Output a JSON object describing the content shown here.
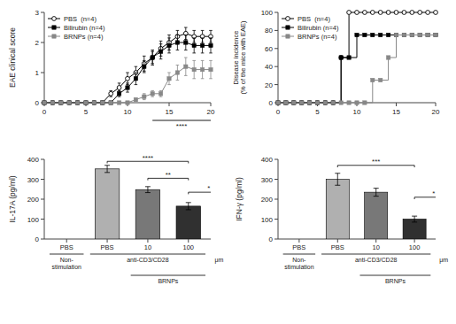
{
  "chart_data": [
    {
      "type": "line",
      "y_label": "EAE clinical score",
      "xlim": [
        0,
        20
      ],
      "ylim": [
        0,
        3
      ],
      "xticks": [
        0,
        5,
        10,
        15,
        20
      ],
      "yticks": [
        0,
        1,
        2,
        3
      ],
      "legend": "upper-left",
      "series": [
        {
          "name": "PBS  (n=4)",
          "color": "#000000",
          "marker": "open-circle",
          "x": [
            0,
            1,
            2,
            3,
            4,
            5,
            6,
            7,
            8,
            9,
            10,
            11,
            12,
            13,
            14,
            15,
            16,
            17,
            18,
            19,
            20
          ],
          "values": [
            0,
            0,
            0,
            0,
            0,
            0,
            0,
            0,
            0.3,
            0.5,
            0.8,
            1.0,
            1.3,
            1.5,
            1.8,
            2.0,
            2.2,
            2.3,
            2.2,
            2.2,
            2.2
          ],
          "errors": [
            0,
            0,
            0,
            0,
            0,
            0,
            0,
            0,
            0.1,
            0.15,
            0.2,
            0.2,
            0.25,
            0.25,
            0.25,
            0.25,
            0.2,
            0.2,
            0.2,
            0.2,
            0.2
          ]
        },
        {
          "name": "Bilirubin (n=4)",
          "color": "#000000",
          "marker": "square",
          "x": [
            0,
            1,
            2,
            3,
            4,
            5,
            6,
            7,
            8,
            9,
            10,
            11,
            12,
            13,
            14,
            15,
            16,
            17,
            18,
            19,
            20
          ],
          "values": [
            0,
            0,
            0,
            0,
            0,
            0,
            0,
            0,
            0,
            0.3,
            0.5,
            0.8,
            1.2,
            1.5,
            1.7,
            1.9,
            2.0,
            2.0,
            1.9,
            1.9,
            1.9
          ],
          "errors": [
            0,
            0,
            0,
            0,
            0,
            0,
            0,
            0,
            0,
            0.1,
            0.15,
            0.2,
            0.2,
            0.2,
            0.25,
            0.25,
            0.25,
            0.25,
            0.25,
            0.25,
            0.25
          ]
        },
        {
          "name": "BRNPs (n=4)",
          "color": "#888888",
          "marker": "square",
          "x": [
            0,
            1,
            2,
            3,
            4,
            5,
            6,
            7,
            8,
            9,
            10,
            11,
            12,
            13,
            14,
            15,
            16,
            17,
            18,
            19,
            20
          ],
          "values": [
            0,
            0,
            0,
            0,
            0,
            0,
            0,
            0,
            0,
            0,
            0,
            0.1,
            0.2,
            0.3,
            0.3,
            0.8,
            1.0,
            1.2,
            1.1,
            1.1,
            1.1
          ],
          "errors": [
            0,
            0,
            0,
            0,
            0,
            0,
            0,
            0,
            0,
            0,
            0,
            0.05,
            0.1,
            0.1,
            0.1,
            0.2,
            0.25,
            0.3,
            0.3,
            0.3,
            0.3
          ]
        }
      ],
      "annotations": [
        {
          "text": "****",
          "x1": 13,
          "x2": 20
        }
      ]
    },
    {
      "type": "step",
      "y_label": "Disease incidence\n(% of the mice with EAE)",
      "xlim": [
        0,
        20
      ],
      "ylim": [
        0,
        100
      ],
      "xticks": [
        0,
        5,
        10,
        15,
        20
      ],
      "yticks": [
        0,
        20,
        40,
        60,
        80,
        100
      ],
      "legend": "upper-left",
      "series": [
        {
          "name": "PBS  (n=4)",
          "color": "#000000",
          "marker": "open-circle",
          "x": [
            0,
            1,
            2,
            3,
            4,
            5,
            6,
            7,
            8,
            9,
            10,
            11,
            12,
            13,
            14,
            15,
            16,
            17,
            18,
            19,
            20
          ],
          "values": [
            0,
            0,
            0,
            0,
            0,
            0,
            0,
            0,
            50,
            100,
            100,
            100,
            100,
            100,
            100,
            100,
            100,
            100,
            100,
            100,
            100
          ]
        },
        {
          "name": "Bilirubin (n=4)",
          "color": "#000000",
          "marker": "square",
          "x": [
            0,
            1,
            2,
            3,
            4,
            5,
            6,
            7,
            8,
            9,
            10,
            11,
            12,
            13,
            14,
            15,
            16,
            17,
            18,
            19,
            20
          ],
          "values": [
            0,
            0,
            0,
            0,
            0,
            0,
            0,
            0,
            50,
            50,
            75,
            75,
            75,
            75,
            75,
            75,
            75,
            75,
            75,
            75,
            75
          ]
        },
        {
          "name": "BRNPs (n=4)",
          "color": "#888888",
          "marker": "square",
          "x": [
            0,
            1,
            2,
            3,
            4,
            5,
            6,
            7,
            8,
            9,
            10,
            11,
            12,
            13,
            14,
            15,
            16,
            17,
            18,
            19,
            20
          ],
          "values": [
            0,
            0,
            0,
            0,
            0,
            0,
            0,
            0,
            0,
            0,
            0,
            0,
            25,
            25,
            50,
            75,
            75,
            75,
            75,
            75,
            75
          ]
        }
      ]
    },
    {
      "type": "bar",
      "y_label": "IL-17A (pg/ml)",
      "ylim": [
        0,
        400
      ],
      "yticks": [
        0,
        100,
        200,
        300,
        400
      ],
      "categories": [
        "PBS",
        "PBS",
        "10",
        "100"
      ],
      "values": [
        0,
        352,
        248,
        165
      ],
      "errors": [
        0,
        18,
        15,
        18
      ],
      "colors": [
        "#b0b0b0",
        "#b0b0b0",
        "#787878",
        "#303030"
      ],
      "annotations": [
        {
          "text": "****",
          "x1": 1,
          "x2": 3,
          "y": 390
        },
        {
          "text": "**",
          "x1": 2,
          "x2": 3,
          "y": 305
        },
        {
          "text": "*",
          "x1": 3,
          "x2": 4,
          "y": 235
        }
      ],
      "groups": [
        {
          "text": "Non-\nstimulation",
          "from": 0,
          "to": 0
        },
        {
          "text": "anti-CD3/CD28",
          "from": 1,
          "to": 3
        },
        {
          "text": "BRNPs",
          "from": 2,
          "to": 3
        }
      ],
      "unit_label": "μm"
    },
    {
      "type": "bar",
      "y_label": "IFN-γ (pg/ml)",
      "ylim": [
        0,
        400
      ],
      "yticks": [
        0,
        100,
        200,
        300,
        400
      ],
      "categories": [
        "PBS",
        "PBS",
        "10",
        "100"
      ],
      "values": [
        0,
        300,
        235,
        100
      ],
      "errors": [
        0,
        30,
        20,
        15
      ],
      "colors": [
        "#b0b0b0",
        "#b0b0b0",
        "#787878",
        "#303030"
      ],
      "annotations": [
        {
          "text": "***",
          "x1": 1,
          "x2": 3,
          "y": 370
        },
        {
          "text": "*",
          "x1": 3,
          "x2": 4,
          "y": 210
        }
      ],
      "groups": [
        {
          "text": "Non-\nstimulation",
          "from": 0,
          "to": 0
        },
        {
          "text": "anti-CD3/CD28",
          "from": 1,
          "to": 3
        },
        {
          "text": "BRNPs",
          "from": 2,
          "to": 3
        }
      ],
      "unit_label": "μm"
    }
  ]
}
